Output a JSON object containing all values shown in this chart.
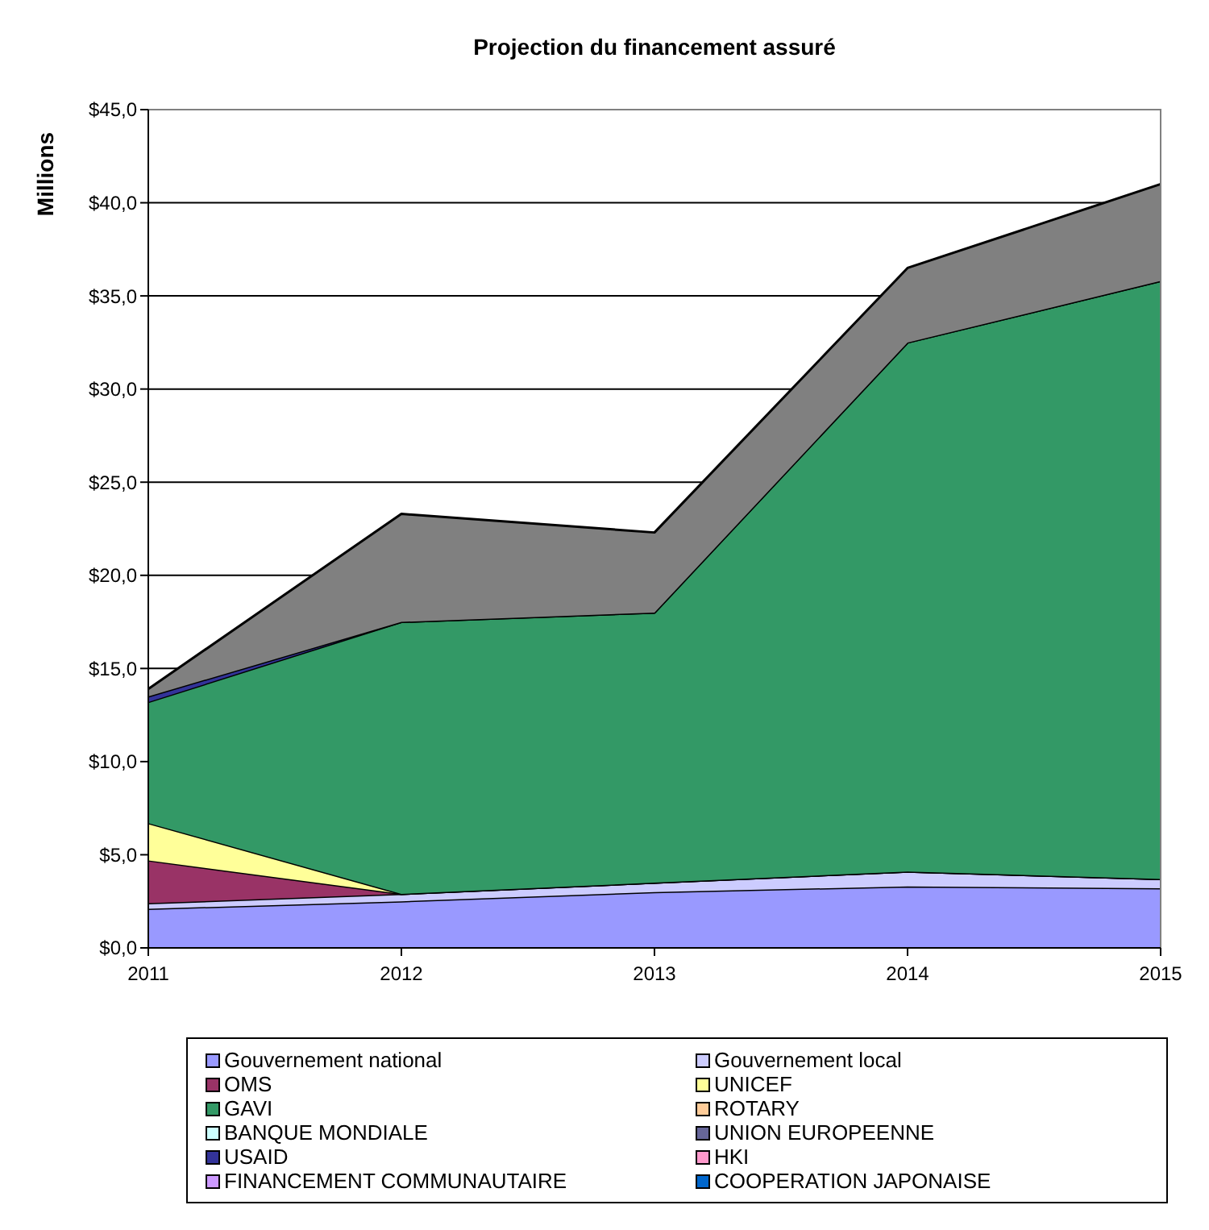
{
  "chart_data": {
    "type": "area",
    "stacked": true,
    "title": "Projection du financement assuré",
    "ylabel": "Millions",
    "categories": [
      "2011",
      "2012",
      "2013",
      "2014",
      "2015"
    ],
    "ylim": [
      0,
      45
    ],
    "yticks": [
      {
        "value": 0,
        "label": "$0,0"
      },
      {
        "value": 5,
        "label": "$5,0"
      },
      {
        "value": 10,
        "label": "$10,0"
      },
      {
        "value": 15,
        "label": "$15,0"
      },
      {
        "value": 20,
        "label": "$20,0"
      },
      {
        "value": 25,
        "label": "$25,0"
      },
      {
        "value": 30,
        "label": "$30,0"
      },
      {
        "value": 35,
        "label": "$35,0"
      },
      {
        "value": 40,
        "label": "$40,0"
      },
      {
        "value": 45,
        "label": "$45,0"
      }
    ],
    "grid": "y",
    "legend": "bottom",
    "series": [
      {
        "name": "Gouvernement national",
        "color": "#9999ff",
        "values": [
          2.1,
          2.5,
          3.0,
          3.3,
          3.2
        ]
      },
      {
        "name": "Gouvernement local",
        "color": "#ccccff",
        "values": [
          0.3,
          0.4,
          0.5,
          0.8,
          0.5
        ]
      },
      {
        "name": "OMS",
        "color": "#993366",
        "values": [
          2.3,
          0,
          0,
          0,
          0
        ]
      },
      {
        "name": "UNICEF",
        "color": "#ffff99",
        "values": [
          2.0,
          0,
          0,
          0,
          0
        ]
      },
      {
        "name": "GAVI",
        "color": "#339966",
        "values": [
          6.5,
          14.6,
          14.5,
          28.4,
          32.1
        ]
      },
      {
        "name": "ROTARY",
        "color": "#ffcc99",
        "values": [
          null,
          null,
          null,
          null,
          null
        ]
      },
      {
        "name": "BANQUE MONDIALE",
        "color": "#ccffff",
        "values": [
          null,
          null,
          null,
          null,
          null
        ]
      },
      {
        "name": "UNION EUROPEENNE",
        "color": "#666699",
        "values": [
          null,
          null,
          null,
          null,
          null
        ]
      },
      {
        "name": "USAID",
        "color": "#333399",
        "values": [
          0.3,
          0,
          0,
          0,
          0
        ]
      },
      {
        "name": "HKI",
        "color": "#ff99cc",
        "values": [
          null,
          null,
          null,
          null,
          null
        ]
      },
      {
        "name": "FINANCEMENT COMMUNAUTAIRE",
        "color": "#cc99ff",
        "values": [
          null,
          null,
          null,
          null,
          null
        ]
      },
      {
        "name": "COOPERATION JAPONAISE",
        "color": "#0066cc",
        "values": [
          null,
          null,
          null,
          null,
          null
        ]
      },
      {
        "color": "#808080",
        "values": [
          0.4,
          5.8,
          4.3,
          4.0,
          5.2
        ]
      }
    ]
  }
}
